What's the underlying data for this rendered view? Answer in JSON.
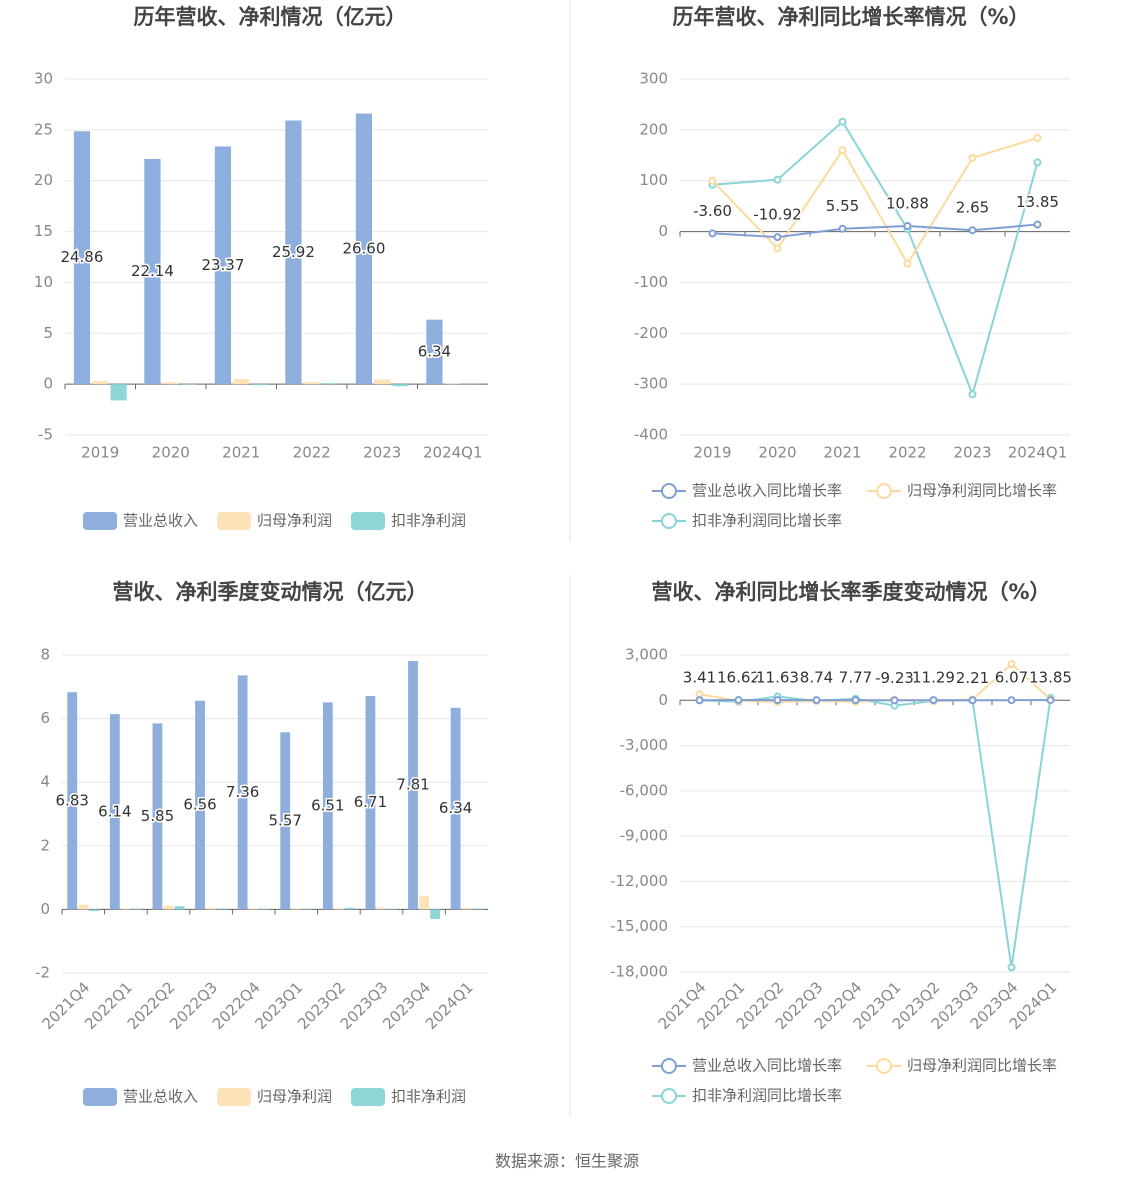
{
  "chart_data": [
    {
      "type": "bar",
      "title": "历年营收、净利情况（亿元）",
      "categories": [
        "2019",
        "2020",
        "2021",
        "2022",
        "2023",
        "2024Q1"
      ],
      "series": [
        {
          "name": "营业总收入",
          "color": "#8eaedd",
          "values": [
            24.86,
            22.14,
            23.37,
            25.92,
            26.6,
            6.34
          ],
          "value_labels": [
            "24.86",
            "22.14",
            "23.37",
            "25.92",
            "26.60",
            "6.34"
          ]
        },
        {
          "name": "归母净利润",
          "color": "#fde3b8",
          "values": [
            0.3,
            0.2,
            0.5,
            0.2,
            0.45,
            0.05
          ]
        },
        {
          "name": "扣非净利润",
          "color": "#8fd6d8",
          "values": [
            -1.6,
            -0.05,
            -0.1,
            0.1,
            -0.2,
            0.03
          ]
        }
      ],
      "ylim": [
        -5,
        30
      ],
      "yticks": [
        -5,
        0,
        5,
        10,
        15,
        20,
        25,
        30
      ],
      "grid": true
    },
    {
      "type": "line",
      "title": "历年营收、净利同比增长率情况（%）",
      "categories": [
        "2019",
        "2020",
        "2021",
        "2022",
        "2023",
        "2024Q1"
      ],
      "series": [
        {
          "name": "营业总收入同比增长率",
          "color": "#7f9fd4",
          "values": [
            -3.6,
            -10.92,
            5.55,
            10.88,
            2.65,
            13.85
          ],
          "value_labels": [
            "-3.60",
            "-10.92",
            "5.55",
            "10.88",
            "2.65",
            "13.85"
          ]
        },
        {
          "name": "归母净利润同比增长率",
          "color": "#fdd99b",
          "values": [
            100,
            -33,
            160,
            -63,
            145,
            184
          ]
        },
        {
          "name": "扣非净利润同比增长率",
          "color": "#88d4d7",
          "values": [
            92,
            102,
            216,
            5,
            -320,
            136
          ]
        }
      ],
      "ylim": [
        -400,
        300
      ],
      "yticks": [
        -400,
        -300,
        -200,
        -100,
        0,
        100,
        200,
        300
      ],
      "grid": true
    },
    {
      "type": "bar",
      "title": "营收、净利季度变动情况（亿元）",
      "categories": [
        "2021Q4",
        "2022Q1",
        "2022Q2",
        "2022Q3",
        "2022Q4",
        "2023Q1",
        "2023Q2",
        "2023Q3",
        "2023Q4",
        "2024Q1"
      ],
      "series": [
        {
          "name": "营业总收入",
          "color": "#8eaedd",
          "values": [
            6.83,
            6.14,
            5.85,
            6.56,
            7.36,
            5.57,
            6.51,
            6.71,
            7.81,
            6.34
          ]
        },
        {
          "name": "归母净利润",
          "color": "#fde3b8",
          "values": [
            0.15,
            0.02,
            0.12,
            0.05,
            0.03,
            0.03,
            0.03,
            0.06,
            0.42,
            0.05
          ]
        },
        {
          "name": "扣非净利润",
          "color": "#8fd6d8",
          "values": [
            -0.05,
            0.02,
            0.1,
            0.03,
            0.02,
            0.02,
            0.05,
            0.02,
            -0.3,
            0.03
          ]
        }
      ],
      "ylim": [
        -2,
        8
      ],
      "yticks": [
        -2,
        0,
        2,
        4,
        6,
        8
      ],
      "grid": true
    },
    {
      "type": "line",
      "title": "营收、净利同比增长率季度变动情况（%）",
      "categories": [
        "2021Q4",
        "2022Q1",
        "2022Q2",
        "2022Q3",
        "2022Q4",
        "2023Q1",
        "2023Q2",
        "2023Q3",
        "2023Q4",
        "2024Q1"
      ],
      "series": [
        {
          "name": "营业总收入同比增长率",
          "color": "#7f9fd4",
          "values": [
            3.41,
            16.62,
            11.63,
            8.74,
            7.77,
            -9.23,
            11.29,
            2.21,
            6.07,
            13.85
          ]
        },
        {
          "name": "归母净利润同比增长率",
          "color": "#fdd99b",
          "values": [
            400,
            -50,
            -100,
            -50,
            -100,
            50,
            -50,
            50,
            2400,
            50
          ]
        },
        {
          "name": "扣非净利润同比增长率",
          "color": "#88d4d7",
          "values": [
            0,
            -100,
            250,
            -50,
            100,
            -350,
            -50,
            0,
            -17700,
            150
          ]
        }
      ],
      "ylim": [
        -18000,
        3000
      ],
      "yticks": [
        {
          "value": -18000,
          "label": "-18,000"
        },
        {
          "value": -15000,
          "label": "-15,000"
        },
        {
          "value": -12000,
          "label": "-12,000"
        },
        {
          "value": -9000,
          "label": "-9,000"
        },
        {
          "value": -6000,
          "label": "-6,000"
        },
        {
          "value": -3000,
          "label": "-3,000"
        },
        0,
        {
          "value": 3000,
          "label": "3,000"
        }
      ],
      "grid": true
    }
  ],
  "source": "数据来源：恒生聚源"
}
